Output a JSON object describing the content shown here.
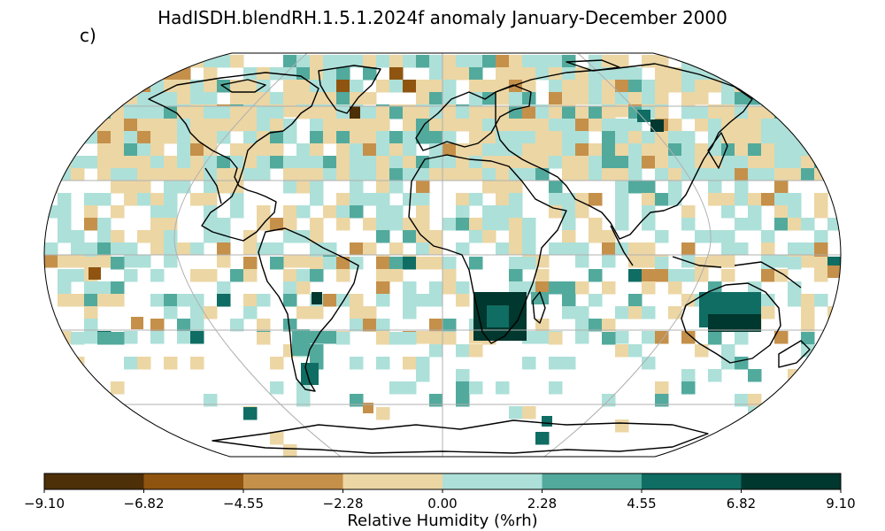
{
  "figure": {
    "title": "HadISDH.blendRH.1.5.1.2024f anomaly January-December 2000",
    "panel_label": "c)"
  },
  "colorbar": {
    "label": "Relative Humidity (%rh)",
    "ticks": [
      "−9.10",
      "−6.82",
      "−4.55",
      "−2.28",
      "0.00",
      "2.28",
      "4.55",
      "6.82",
      "9.10"
    ],
    "colors": [
      "#4d2f08",
      "#8f540f",
      "#c5904a",
      "#ecd6a4",
      "#ade0d9",
      "#52aa9d",
      "#0f6d63",
      "#00372e"
    ]
  },
  "map": {
    "projection": "robinson",
    "gridlines": true,
    "coastlines": true
  }
}
